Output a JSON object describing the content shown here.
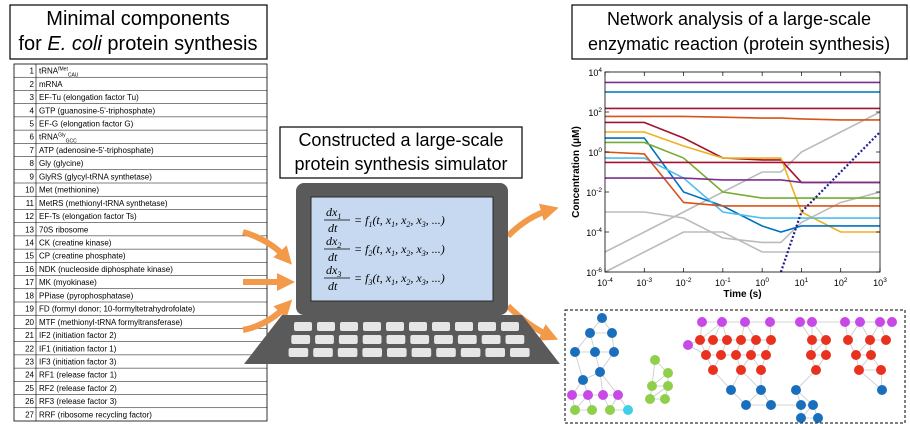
{
  "left_title": {
    "line1": "Minimal components",
    "line2_pre": "for ",
    "line2_italic": "E. coli",
    "line2_post": " protein synthesis"
  },
  "table": {
    "rows": [
      {
        "no": 1,
        "name": "tRNA",
        "sup": "fMet",
        "sub": "CAU"
      },
      {
        "no": 2,
        "name": "mRNA"
      },
      {
        "no": 3,
        "name": "EF-Tu (elongation factor Tu)"
      },
      {
        "no": 4,
        "name": "GTP (guanosine-5'-triphosphate)"
      },
      {
        "no": 5,
        "name": "EF-G (elongation factor G)"
      },
      {
        "no": 6,
        "name": "tRNA",
        "sup": "Gly",
        "sub": "GCC"
      },
      {
        "no": 7,
        "name": "ATP (adenosine-5'-triphosphate)"
      },
      {
        "no": 8,
        "name": "Gly (glycine)"
      },
      {
        "no": 9,
        "name": "GlyRS (glycyl-tRNA synthetase)"
      },
      {
        "no": 10,
        "name": "Met (methionine)"
      },
      {
        "no": 11,
        "name": "MetRS (methionyl-tRNA synthetase)"
      },
      {
        "no": 12,
        "name": "EF-Ts (elongation factor Ts)"
      },
      {
        "no": 13,
        "name": "70S ribosome"
      },
      {
        "no": 14,
        "name": "CK (creatine kinase)"
      },
      {
        "no": 15,
        "name": "CP (creatine phosphate)"
      },
      {
        "no": 16,
        "name": "NDK (nucleoside diphosphate kinase)"
      },
      {
        "no": 17,
        "name": "MK (myokinase)"
      },
      {
        "no": 18,
        "name": "PPiase (pyrophosphatase)"
      },
      {
        "no": 19,
        "name": "FD (formyl donor; 10-formyltetrahydrofolate)"
      },
      {
        "no": 20,
        "name": "MTF (methionyl-tRNA formyltransferase)"
      },
      {
        "no": 21,
        "name": "IF2 (initiation factor 2)"
      },
      {
        "no": 22,
        "name": "IF1 (initiation factor 1)"
      },
      {
        "no": 23,
        "name": "IF3 (initiation factor 3)"
      },
      {
        "no": 24,
        "name": "RF1 (release factor 1)"
      },
      {
        "no": 25,
        "name": "RF2 (release factor 2)"
      },
      {
        "no": 26,
        "name": "RF3 (release factor 3)"
      },
      {
        "no": 27,
        "name": "RRF (ribosome recycling factor)"
      }
    ]
  },
  "middle_title": {
    "line1": "Constructed a large-scale",
    "line2": "protein synthesis simulator"
  },
  "equations": [
    {
      "num": "dx",
      "index": "1",
      "den": "dt",
      "rhs": "= f",
      "args": [
        "(t, x",
        "1",
        ", x",
        "2",
        ", x",
        "3",
        ", ...)"
      ]
    },
    {
      "num": "dx",
      "index": "2",
      "den": "dt",
      "rhs": "= f",
      "args": [
        "(t, x",
        "1",
        ", x",
        "2",
        ", x",
        "3",
        ", ...)"
      ]
    },
    {
      "num": "dx",
      "index": "3",
      "den": "dt",
      "rhs": "= f",
      "args": [
        "(t, x",
        "1",
        ", x",
        "2",
        ", x",
        "3",
        ", ...)"
      ]
    }
  ],
  "right_title": {
    "line1": "Network analysis of a large-scale",
    "line2": "enzymatic reaction (protein synthesis)"
  },
  "chart_data": {
    "type": "line",
    "xlabel": "Time (s)",
    "ylabel": "Concentration (μM)",
    "log": true,
    "x": [
      0.0001,
      0.001,
      0.01,
      0.1,
      1,
      3,
      10,
      100,
      1000
    ],
    "xlim": [
      0.0001,
      1000
    ],
    "ylim": [
      1e-06,
      10000
    ],
    "xticks": [
      {
        "value": 0.0001,
        "label": "10",
        "exponent": "-4"
      },
      {
        "value": 0.001,
        "label": "10",
        "exponent": "-3"
      },
      {
        "value": 0.01,
        "label": "10",
        "exponent": "-2"
      },
      {
        "value": 0.1,
        "label": "10",
        "exponent": "-1"
      },
      {
        "value": 1,
        "label": "10",
        "exponent": "0"
      },
      {
        "value": 10,
        "label": "10",
        "exponent": "1"
      },
      {
        "value": 100,
        "label": "10",
        "exponent": "2"
      },
      {
        "value": 1000,
        "label": "10",
        "exponent": "3"
      }
    ],
    "yticks": [
      {
        "value": 1e-06,
        "label": "10",
        "exponent": "-6"
      },
      {
        "value": 0.0001,
        "label": "10",
        "exponent": "-4"
      },
      {
        "value": 0.01,
        "label": "10",
        "exponent": "-2"
      },
      {
        "value": 1,
        "label": "10",
        "exponent": "0"
      },
      {
        "value": 100,
        "label": "10",
        "exponent": "2"
      },
      {
        "value": 10000,
        "label": "10",
        "exponent": "4"
      }
    ],
    "series": [
      {
        "color": "#bbbbbb",
        "values": [
          1e-05,
          0.0001,
          0.001,
          0.01,
          0.1,
          0.1,
          1,
          10,
          100
        ]
      },
      {
        "color": "#bbbbbb",
        "values": [
          1e-06,
          1e-05,
          0.0001,
          0.0001,
          1e-05,
          1e-05,
          1e-05,
          1e-05,
          1e-05
        ]
      },
      {
        "color": "#bbbbbb",
        "values": [
          0.001,
          0.001,
          0.0005,
          5e-05,
          3e-05,
          3e-05,
          0.0003,
          0.003,
          0.01
        ]
      },
      {
        "color": "#7e2f8e",
        "values": [
          3000,
          3000,
          3000,
          3000,
          3000,
          3000,
          3000,
          3000,
          3000
        ]
      },
      {
        "color": "#0072bd",
        "values": [
          1000,
          1000,
          1000,
          1000,
          1000,
          1000,
          1000,
          1000,
          1000
        ]
      },
      {
        "color": "#a2142f",
        "values": [
          150,
          150,
          150,
          150,
          150,
          150,
          150,
          150,
          150
        ]
      },
      {
        "color": "#d95319",
        "values": [
          60,
          60,
          60,
          55,
          50,
          50,
          45,
          40,
          40
        ]
      },
      {
        "color": "#a2142f",
        "values": [
          30,
          30,
          5,
          0.5,
          0.4,
          0.4,
          0.03,
          0.03,
          0.03
        ]
      },
      {
        "color": "#edb120",
        "values": [
          10,
          10,
          2,
          0.5,
          0.5,
          0.5,
          0.001,
          0.0001,
          0.0001
        ]
      },
      {
        "color": "#0072bd",
        "values": [
          5,
          5,
          0.01,
          0.002,
          0.0002,
          0.0001,
          0.0002,
          0.0002,
          0.0002
        ]
      },
      {
        "color": "#4dbeee",
        "values": [
          0.5,
          0.5,
          0.05,
          0.001,
          0.0005,
          0.0005,
          0.0005,
          0.0005,
          0.0005
        ]
      },
      {
        "color": "#77ac30",
        "values": [
          3,
          3,
          0.5,
          0.01,
          0.005,
          0.005,
          0.005,
          0.005,
          0.005
        ]
      },
      {
        "color": "#d95319",
        "values": [
          1,
          0.8,
          0.003,
          0.002,
          0.002,
          0.002,
          0.002,
          0.002,
          0.002
        ]
      },
      {
        "color": "#7e2f8e",
        "values": [
          0.05,
          0.05,
          0.05,
          0.04,
          0.04,
          0.04,
          0.03,
          0.03,
          0.03
        ]
      },
      {
        "color": "#a2142f",
        "values": [
          0.3,
          0.3,
          0.3,
          0.3,
          0.3,
          0.3,
          0.3,
          0.3,
          0.3
        ]
      },
      {
        "color": "#1f1f8f",
        "style": "dotted",
        "values": [
          null,
          null,
          null,
          null,
          null,
          1e-06,
          0.001,
          0.1,
          10
        ]
      }
    ]
  }
}
